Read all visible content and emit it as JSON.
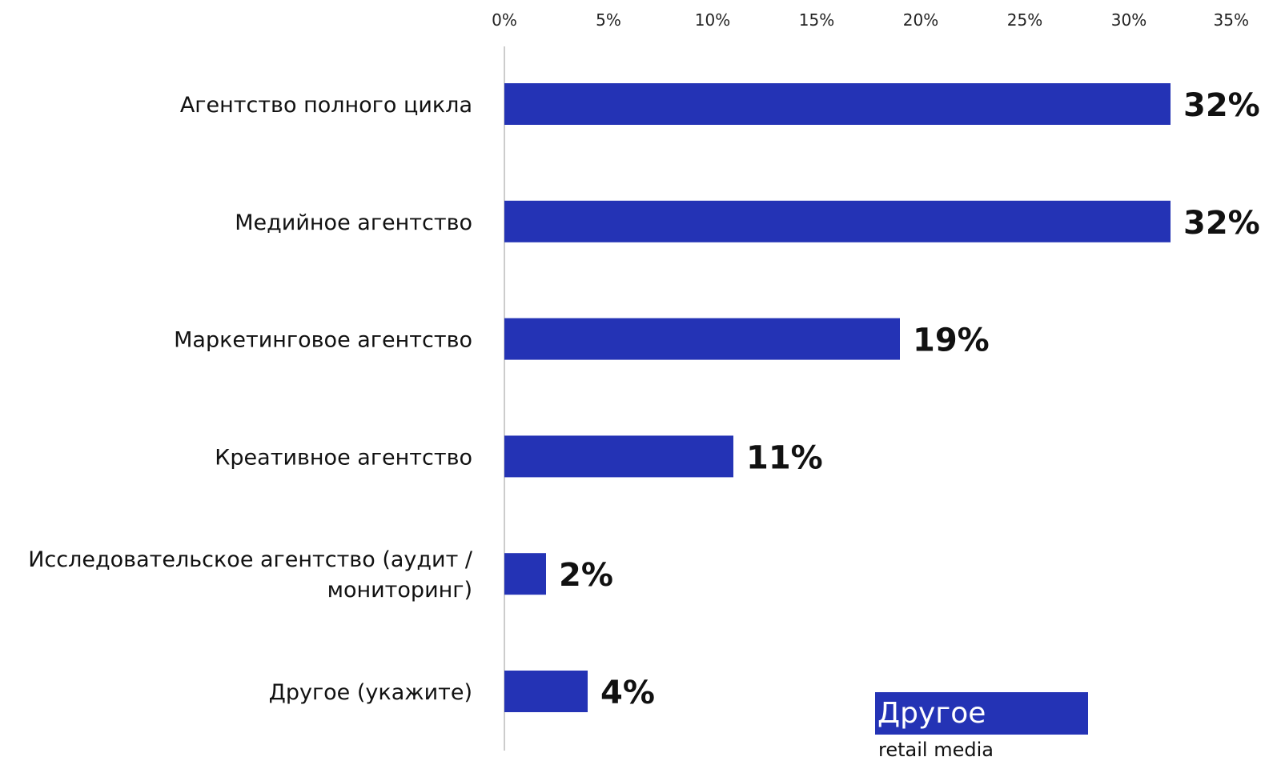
{
  "chart_data": {
    "type": "bar",
    "orientation": "horizontal",
    "categories": [
      "Агентство полного цикла",
      "Медийное агентство",
      "Маркетинговое агентство",
      "Креативное агентство",
      "Исследовательское агентство (аудит / мониторинг)",
      "Другое (укажите)"
    ],
    "category_lines": [
      [
        "Агентство полного цикла"
      ],
      [
        "Медийное агентство"
      ],
      [
        "Маркетинговое агентство"
      ],
      [
        "Креативное агентство"
      ],
      [
        "Исследовательское агентство (аудит /",
        "мониторинг)"
      ],
      [
        "Другое (укажите)"
      ]
    ],
    "values": [
      32,
      32,
      19,
      11,
      2,
      4
    ],
    "value_labels": [
      "32%",
      "32%",
      "19%",
      "11%",
      "2%",
      "4%"
    ],
    "xlim": [
      0,
      35
    ],
    "xticks": [
      "0%",
      "5%",
      "10%",
      "15%",
      "20%",
      "25%",
      "30%",
      "35%"
    ],
    "x_axis_position": "top",
    "grid": false,
    "bar_color": "#2433b5"
  },
  "legend": {
    "title": "Другое",
    "subtitle": "retail media",
    "color": "#2433b5"
  }
}
